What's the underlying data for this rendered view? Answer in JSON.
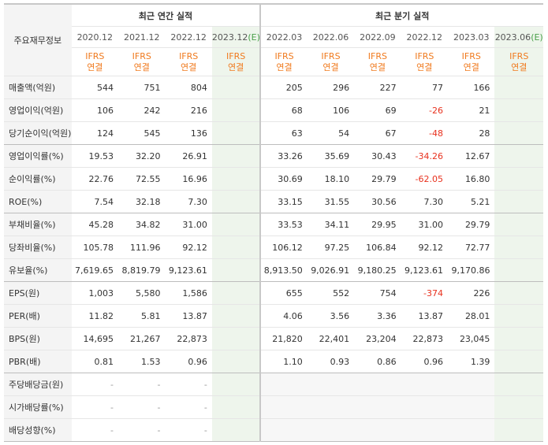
{
  "header": {
    "row_label": "주요재무정보",
    "annual_group": "최근 연간 실적",
    "quarter_group": "최근 분기 실적",
    "ifrs_line1": "IFRS",
    "ifrs_line2": "연결",
    "est_mark": "(E)"
  },
  "annual_periods": [
    "2020.12",
    "2021.12",
    "2022.12",
    "2023.12"
  ],
  "quarter_periods": [
    "2022.03",
    "2022.06",
    "2022.09",
    "2022.12",
    "2023.03",
    "2023.06"
  ],
  "rows": [
    {
      "label": "매출액(억원)",
      "values": [
        "544",
        "751",
        "804",
        "",
        "205",
        "296",
        "227",
        "77",
        "166",
        ""
      ]
    },
    {
      "label": "영업이익(억원)",
      "values": [
        "106",
        "242",
        "216",
        "",
        "68",
        "106",
        "69",
        "-26",
        "21",
        ""
      ]
    },
    {
      "label": "당기순이익(억원)",
      "values": [
        "124",
        "545",
        "136",
        "",
        "63",
        "54",
        "67",
        "-48",
        "28",
        ""
      ]
    },
    {
      "label": "영업이익률(%)",
      "values": [
        "19.53",
        "32.20",
        "26.91",
        "",
        "33.26",
        "35.69",
        "30.43",
        "-34.26",
        "12.67",
        ""
      ]
    },
    {
      "label": "순이익률(%)",
      "values": [
        "22.76",
        "72.55",
        "16.96",
        "",
        "30.69",
        "18.10",
        "29.79",
        "-62.05",
        "16.80",
        ""
      ]
    },
    {
      "label": "ROE(%)",
      "values": [
        "7.54",
        "32.18",
        "7.30",
        "",
        "33.15",
        "31.55",
        "30.56",
        "7.30",
        "5.21",
        ""
      ]
    },
    {
      "label": "부채비율(%)",
      "values": [
        "45.28",
        "34.82",
        "31.00",
        "",
        "33.53",
        "34.11",
        "29.95",
        "31.00",
        "29.79",
        ""
      ]
    },
    {
      "label": "당좌비율(%)",
      "values": [
        "105.78",
        "111.96",
        "92.12",
        "",
        "106.12",
        "97.25",
        "106.84",
        "92.12",
        "72.77",
        ""
      ]
    },
    {
      "label": "유보율(%)",
      "values": [
        "7,619.65",
        "8,819.79",
        "9,123.61",
        "",
        "8,913.50",
        "9,026.91",
        "9,180.25",
        "9,123.61",
        "9,170.86",
        ""
      ]
    },
    {
      "label": "EPS(원)",
      "values": [
        "1,003",
        "5,580",
        "1,586",
        "",
        "655",
        "552",
        "754",
        "-374",
        "226",
        ""
      ]
    },
    {
      "label": "PER(배)",
      "values": [
        "11.82",
        "5.81",
        "13.87",
        "",
        "4.06",
        "3.56",
        "3.36",
        "13.87",
        "28.01",
        ""
      ]
    },
    {
      "label": "BPS(원)",
      "values": [
        "14,695",
        "21,267",
        "22,873",
        "",
        "21,820",
        "22,401",
        "23,204",
        "22,873",
        "23,045",
        ""
      ]
    },
    {
      "label": "PBR(배)",
      "values": [
        "0.81",
        "1.53",
        "0.96",
        "",
        "1.10",
        "0.93",
        "0.86",
        "0.96",
        "1.39",
        ""
      ]
    },
    {
      "label": "주당배당금(원)",
      "values": [
        "-",
        "-",
        "-",
        "",
        "",
        "",
        "",
        "",
        "",
        ""
      ]
    },
    {
      "label": "시가배당률(%)",
      "values": [
        "-",
        "-",
        "-",
        "",
        "",
        "",
        "",
        "",
        "",
        ""
      ]
    },
    {
      "label": "배당성향(%)",
      "values": [
        "-",
        "-",
        "-",
        "",
        "",
        "",
        "",
        "",
        "",
        ""
      ]
    }
  ],
  "colors": {
    "ifrs": "#f07a1e",
    "negative": "#e8311e",
    "estimate_bg": "#eef5ec",
    "label_bg": "#f4f4f4"
  }
}
